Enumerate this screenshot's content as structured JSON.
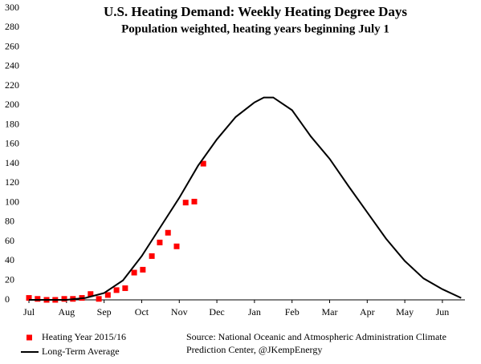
{
  "chart_data": {
    "type": "line",
    "title": "U.S. Heating Demand: Weekly Heating Degree Days",
    "subtitle": "Population weighted, heating years beginning July 1",
    "source": [
      "Source: National Oceanic and Atmospheric Administration Climate",
      "Prediction Center, @JKempEnergy"
    ],
    "xlim": [
      -0.05,
      11.6
    ],
    "xticks": [
      {
        "value": 0,
        "label": "Jul"
      },
      {
        "value": 1,
        "label": "Aug"
      },
      {
        "value": 2,
        "label": "Sep"
      },
      {
        "value": 3,
        "label": "Oct"
      },
      {
        "value": 4,
        "label": "Nov"
      },
      {
        "value": 5,
        "label": "Dec"
      },
      {
        "value": 6,
        "label": "Jan"
      },
      {
        "value": 7,
        "label": "Feb"
      },
      {
        "value": 8,
        "label": "Mar"
      },
      {
        "value": 9,
        "label": "Apr"
      },
      {
        "value": 10,
        "label": "May"
      },
      {
        "value": 11,
        "label": "Jun"
      }
    ],
    "ylim": [
      0,
      300
    ],
    "yticks": [
      0,
      20,
      40,
      60,
      80,
      100,
      120,
      140,
      160,
      180,
      200,
      220,
      240,
      260,
      280,
      300
    ],
    "grid": false,
    "legend": "bottom-left",
    "series": [
      {
        "name": "Heating Year 2015/16",
        "color": "#ff0000",
        "mark": "square",
        "x": [
          0,
          0.23,
          0.47,
          0.7,
          0.94,
          1.17,
          1.41,
          1.64,
          1.86,
          2.1,
          2.33,
          2.56,
          2.8,
          3.03,
          3.27,
          3.48,
          3.7,
          3.93,
          4.17,
          4.4,
          4.64
        ],
        "values": [
          2,
          1,
          0,
          0,
          1,
          1,
          2,
          6,
          1,
          5,
          10,
          12,
          28,
          31,
          45,
          59,
          69,
          55,
          100,
          101,
          140
        ]
      },
      {
        "name": "Long-Term Average",
        "color": "#000000",
        "mark": "line",
        "x": [
          0,
          0.5,
          1,
          1.5,
          2,
          2.5,
          3,
          3.5,
          4,
          4.5,
          5,
          5.5,
          6,
          6.25,
          6.5,
          7,
          7.5,
          8,
          8.5,
          9,
          9.5,
          10,
          10.5,
          11,
          11.5
        ],
        "values": [
          0,
          0,
          0,
          2,
          7,
          20,
          45,
          75,
          105,
          138,
          165,
          188,
          203,
          208,
          208,
          195,
          168,
          145,
          117,
          90,
          63,
          40,
          22,
          11,
          2
        ]
      }
    ]
  }
}
